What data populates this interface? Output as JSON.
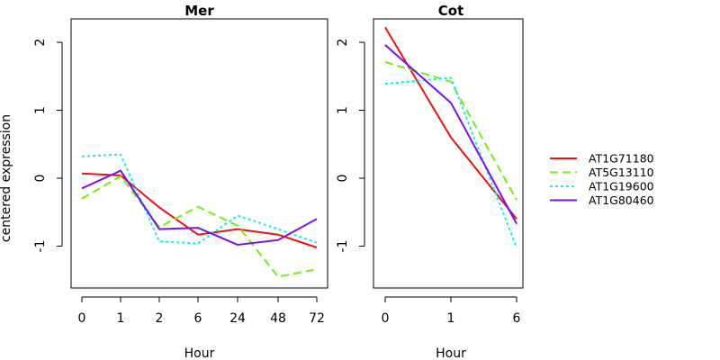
{
  "chart_data": [
    {
      "type": "line",
      "title": "Mer",
      "xlabel": "Hour",
      "ylabel": "centered expression",
      "categories": [
        "0",
        "1",
        "2",
        "6",
        "24",
        "48",
        "72"
      ],
      "ylim": [
        -1.6,
        2.35
      ],
      "yticks": [
        "-1",
        "0",
        "1",
        "2"
      ],
      "series": [
        {
          "name": "AT1G71180",
          "values": [
            0.07,
            0.04,
            -0.43,
            -0.83,
            -0.75,
            -0.83,
            -1.02
          ]
        },
        {
          "name": "AT5G13110",
          "values": [
            -0.3,
            0.03,
            -0.72,
            -0.42,
            -0.7,
            -1.45,
            -1.34
          ]
        },
        {
          "name": "AT1G19600",
          "values": [
            0.32,
            0.35,
            -0.93,
            -0.96,
            -0.55,
            -0.75,
            -0.95
          ]
        },
        {
          "name": "AT1G80460",
          "values": [
            -0.15,
            0.11,
            -0.75,
            -0.73,
            -0.98,
            -0.91,
            -0.6
          ]
        }
      ]
    },
    {
      "type": "line",
      "title": "Cot",
      "xlabel": "Hour",
      "ylabel": "",
      "categories": [
        "0",
        "1",
        "6"
      ],
      "ylim": [
        -1.6,
        2.35
      ],
      "yticks": [
        "-1",
        "0",
        "1",
        "2"
      ],
      "series": [
        {
          "name": "AT1G71180",
          "values": [
            2.22,
            0.6,
            -0.6
          ]
        },
        {
          "name": "AT5G13110",
          "values": [
            1.71,
            1.42,
            -0.32
          ]
        },
        {
          "name": "AT1G19600",
          "values": [
            1.39,
            1.48,
            -1.02
          ]
        },
        {
          "name": "AT1G80460",
          "values": [
            1.96,
            1.11,
            -0.67
          ]
        }
      ]
    }
  ],
  "legend": {
    "entries": [
      "AT1G71180",
      "AT5G13110",
      "AT1G19600",
      "AT1G80460"
    ],
    "placement": "right",
    "colors": [
      "#ee1111",
      "#77ee11",
      "#11eeee",
      "#7711ee"
    ],
    "dashes": [
      "solid",
      "dashed",
      "dotted",
      "solid"
    ]
  }
}
